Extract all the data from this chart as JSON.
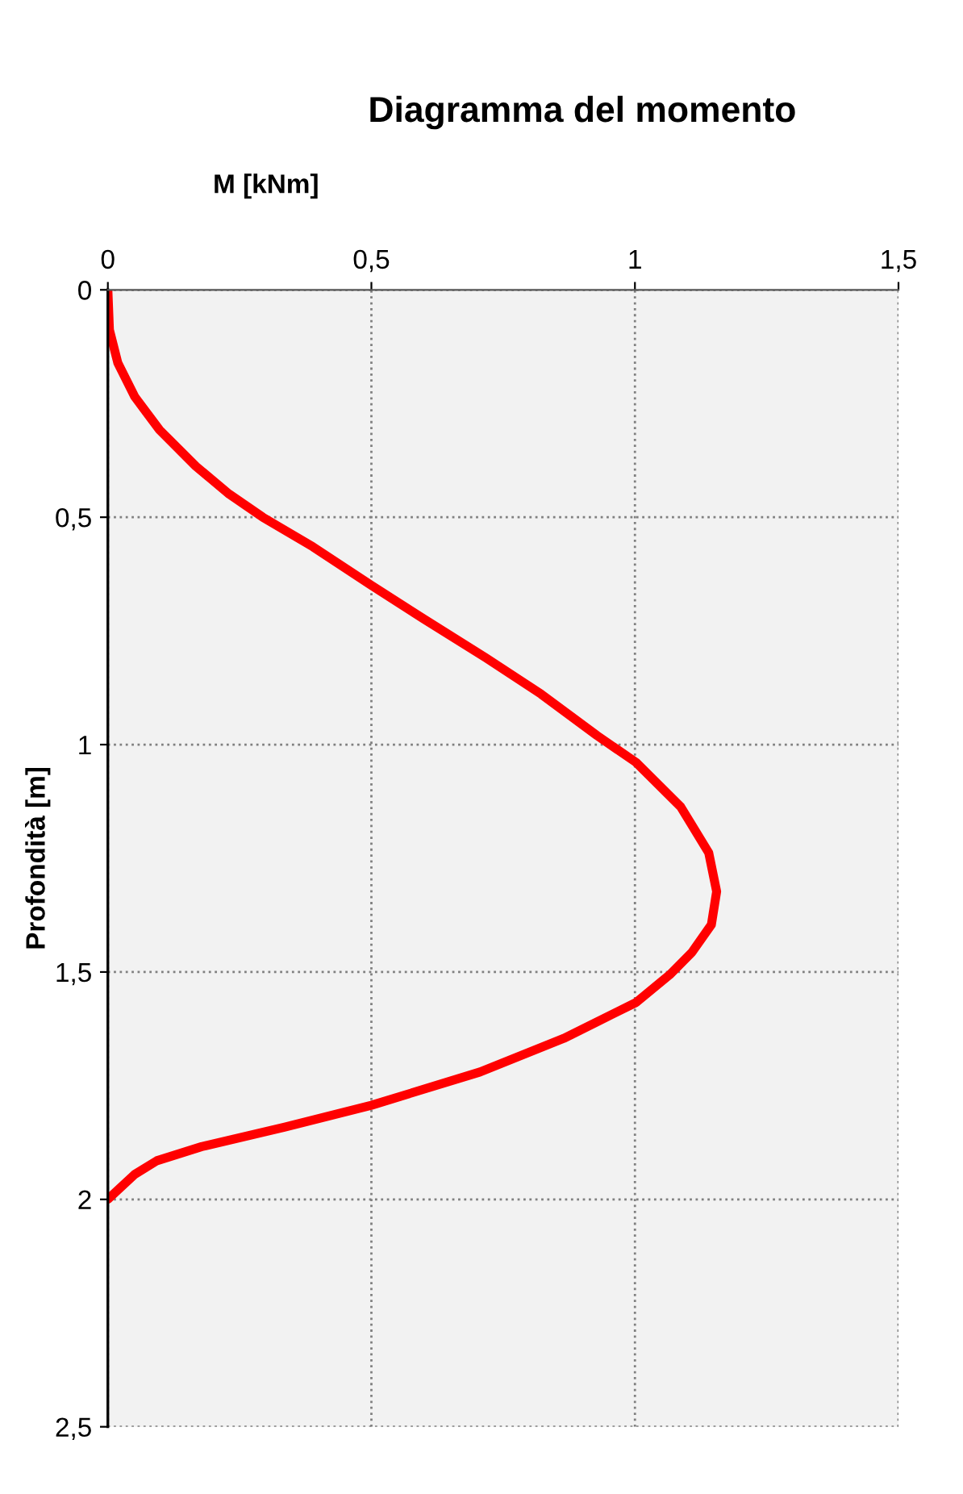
{
  "chart_data": {
    "type": "line",
    "title": "Diagramma del momento",
    "xlabel": "M [kNm]",
    "ylabel": "Profondità [m]",
    "xlim": [
      0,
      1.5
    ],
    "xticks": [
      0,
      {
        "value": 0.5,
        "label": "0,5"
      },
      1,
      {
        "value": 1.5,
        "label": "1,5"
      }
    ],
    "ylim": [
      2.5,
      0
    ],
    "yticks": [
      0,
      {
        "value": 0.5,
        "label": "0,5"
      },
      1,
      {
        "value": 1.5,
        "label": "1,5"
      },
      2,
      {
        "value": 2.5,
        "label": "2,5"
      }
    ],
    "grid": true,
    "line_style": "solid",
    "marker": "none",
    "series": [
      {
        "color": "#ff0000",
        "x": [
          0,
          0.003,
          0.019,
          0.051,
          0.098,
          0.167,
          0.23,
          0.294,
          0.389,
          0.5,
          0.6,
          0.717,
          0.822,
          0.928,
          1.002,
          1.087,
          1.14,
          1.155,
          1.145,
          1.108,
          1.066,
          1.002,
          0.865,
          0.706,
          0.5,
          0.336,
          0.178,
          0.093,
          0.051,
          0
        ],
        "values": [
          0,
          0.088,
          0.161,
          0.235,
          0.308,
          0.388,
          0.449,
          0.5,
          0.565,
          0.65,
          0.724,
          0.809,
          0.889,
          0.98,
          1.039,
          1.137,
          1.238,
          1.323,
          1.396,
          1.457,
          1.506,
          1.567,
          1.646,
          1.72,
          1.793,
          1.841,
          1.884,
          1.915,
          1.945,
          2
        ]
      }
    ]
  }
}
